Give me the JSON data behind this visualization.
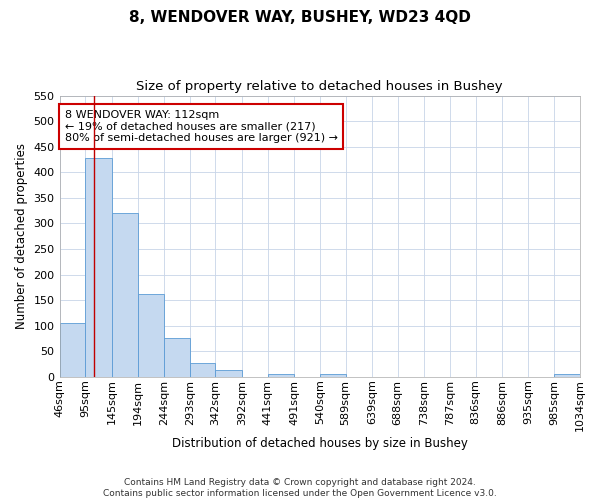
{
  "title": "8, WENDOVER WAY, BUSHEY, WD23 4QD",
  "subtitle": "Size of property relative to detached houses in Bushey",
  "xlabel": "Distribution of detached houses by size in Bushey",
  "ylabel": "Number of detached properties",
  "footer_line1": "Contains HM Land Registry data © Crown copyright and database right 2024.",
  "footer_line2": "Contains public sector information licensed under the Open Government Licence v3.0.",
  "bin_edges": [
    46,
    95,
    145,
    194,
    244,
    293,
    342,
    392,
    441,
    491,
    540,
    589,
    639,
    688,
    738,
    787,
    836,
    886,
    935,
    985,
    1034
  ],
  "bin_labels": [
    "46sqm",
    "95sqm",
    "145sqm",
    "194sqm",
    "244sqm",
    "293sqm",
    "342sqm",
    "392sqm",
    "441sqm",
    "491sqm",
    "540sqm",
    "589sqm",
    "639sqm",
    "688sqm",
    "738sqm",
    "787sqm",
    "836sqm",
    "886sqm",
    "935sqm",
    "985sqm",
    "1034sqm"
  ],
  "bar_heights": [
    105,
    428,
    321,
    162,
    75,
    27,
    14,
    0,
    6,
    0,
    5,
    0,
    0,
    0,
    0,
    0,
    0,
    0,
    0,
    5
  ],
  "bar_color": "#c5d9f0",
  "bar_edge_color": "#5b9bd5",
  "property_line_x": 112,
  "property_line_color": "#c00000",
  "annotation_line1": "8 WENDOVER WAY: 112sqm",
  "annotation_line2": "← 19% of detached houses are smaller (217)",
  "annotation_line3": "80% of semi-detached houses are larger (921) →",
  "ylim": [
    0,
    550
  ],
  "yticks": [
    0,
    50,
    100,
    150,
    200,
    250,
    300,
    350,
    400,
    450,
    500,
    550
  ],
  "background_color": "#ffffff",
  "grid_color": "#c8d4e8",
  "title_fontsize": 11,
  "subtitle_fontsize": 9.5,
  "axis_label_fontsize": 8.5,
  "tick_fontsize": 8,
  "annotation_fontsize": 8,
  "footer_fontsize": 6.5
}
